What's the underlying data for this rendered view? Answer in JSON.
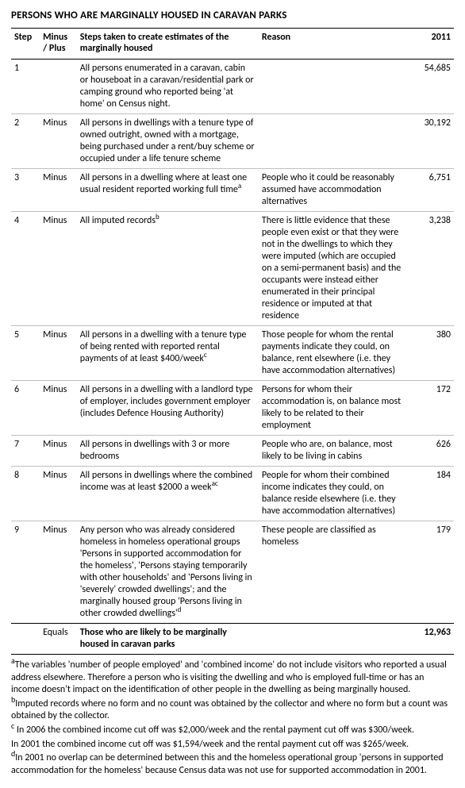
{
  "title": "PERSONS WHO ARE MARGINALLY HOUSED IN CARAVAN PARKS",
  "headers": {
    "step": "Step",
    "minus_plus": "Minus / Plus",
    "steps_taken": "Steps taken to create estimates of the marginally housed",
    "reason": "Reason",
    "year": "2011"
  },
  "rows": [
    {
      "step": "1",
      "mp": "",
      "desc": "All persons enumerated in a caravan, cabin or houseboat in a caravan/residential park or camping ground who reported being 'at home' on Census night.",
      "reason": "",
      "value": "54,685"
    },
    {
      "step": "2",
      "mp": "Minus",
      "desc": "All persons in dwellings with a tenure type of owned outright, owned with a mortgage, being purchased under a rent/buy scheme or occupied under a life tenure scheme",
      "reason": "",
      "value": "30,192"
    },
    {
      "step": "3",
      "mp": "Minus",
      "desc": "All persons in a dwelling where at least one usual resident reported working full time",
      "desc_sup": "a",
      "reason": "People who it could be reasonably assumed have accommodation alternatives",
      "value": "6,751"
    },
    {
      "step": "4",
      "mp": "Minus",
      "desc": "All imputed records",
      "desc_sup": "b",
      "reason": "There is little evidence that these people even exist or that they were not in the dwellings to which they were imputed (which are occupied on a semi-permanent basis) and the occupants were instead either enumerated in their principal residence or imputed at that residence",
      "value": "3,238"
    },
    {
      "step": "5",
      "mp": "Minus",
      "desc": "All persons in a dwelling with a tenure type of being rented with reported rental payments of at least $400/week",
      "desc_sup": "c",
      "reason": "Those people for whom the rental payments indicate they could, on balance, rent elsewhere (i.e. they have accommodation alternatives)",
      "value": "380"
    },
    {
      "step": "6",
      "mp": "Minus",
      "desc": "All persons in a dwelling with a landlord type of employer, includes government employer (includes Defence Housing Authority)",
      "reason": "Persons for whom their accommodation is, on balance most likely to be related to their employment",
      "value": "172"
    },
    {
      "step": "7",
      "mp": "Minus",
      "desc": "All persons in dwellings with 3 or more bedrooms",
      "reason": "People who are, on balance, most likely to be living in cabins",
      "value": "626"
    },
    {
      "step": "8",
      "mp": "Minus",
      "desc": "All persons in dwellings where the combined income was at least $2000 a week",
      "desc_sup": "ac",
      "reason": "People for whom their combined income indicates they could, on balance reside elsewhere (i.e. they have accommodation alternatives)",
      "value": "184"
    },
    {
      "step": "9",
      "mp": "Minus",
      "desc": "Any person who was already considered homeless in homeless operational groups 'Persons in supported accommodation for the homeless', 'Persons staying temporarily with other households' and 'Persons living in 'severely' crowded dwellings'; and the marginally housed group 'Persons living in other crowded dwellings'",
      "desc_sup": "d",
      "reason": "These people are classified as homeless",
      "value": "179"
    }
  ],
  "equals": {
    "label": "Equals",
    "desc": "Those who are likely to be marginally housed in caravan parks",
    "value": "12,963"
  },
  "footnotes": {
    "a": "The variables 'number of people employed' and 'combined income' do not include visitors who reported a usual address elsewhere. Therefore a person who is visiting the dwelling and who is employed full-time or has an income doesn't impact on the identification of other people in the dwelling as being marginally housed.",
    "b": "Imputed records where no form and no count was obtained by the collector and where no form but a count was obtained by the collector.",
    "c1": " In 2006 the combined income cut off was $2,000/week and the rental payment cut off was $300/week.",
    "c2": "In 2001 the combined income cut off was $1,594/week and the rental payment cut off was $265/week.",
    "d": "In 2001 no overlap can be determined between this and the homeless operational group 'persons in supported accommodation for the homeless' because Census data was not use for supported accommodation in 2001."
  }
}
